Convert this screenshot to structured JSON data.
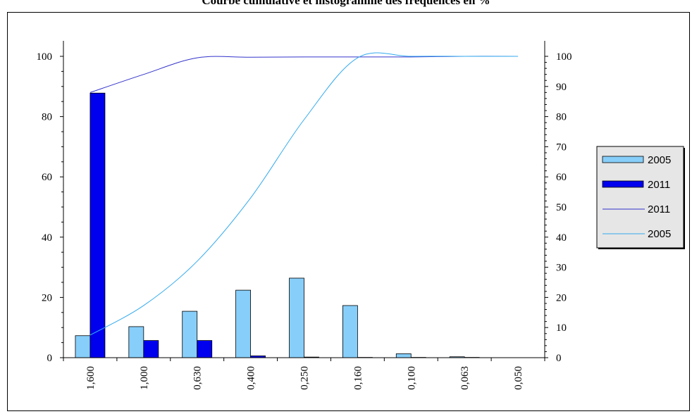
{
  "chart_data": {
    "type": "bar",
    "title": "Courbe cumulative et histogramme des fréquences en %",
    "categories": [
      "1,600",
      "1,000",
      "0,630",
      "0,400",
      "0,250",
      "0,160",
      "0,100",
      "0,063",
      "0,050"
    ],
    "series": [
      {
        "name": "2005",
        "kind": "bar",
        "axis": "left",
        "color": "#87CEFA",
        "values": [
          7.3,
          10.3,
          15.4,
          22.4,
          26.4,
          17.3,
          1.3,
          0.3,
          0
        ]
      },
      {
        "name": "2011",
        "kind": "bar",
        "axis": "left",
        "color": "#0000EE",
        "values": [
          87.8,
          5.7,
          5.7,
          0.6,
          0.2,
          0.1,
          0.1,
          0.1,
          0
        ]
      },
      {
        "name": "2011",
        "kind": "line",
        "axis": "right",
        "color": "#3333CC",
        "values": [
          88,
          94,
          99.5,
          99.7,
          99.8,
          99.8,
          99.8,
          100,
          100
        ]
      },
      {
        "name": "2005",
        "kind": "line",
        "axis": "right",
        "color": "#33AAEE",
        "values": [
          7.5,
          17.3,
          32,
          53,
          79,
          99.5,
          100,
          100,
          100
        ]
      }
    ],
    "y_left": {
      "ylim": [
        0,
        100
      ],
      "ticks": [
        "0",
        "20",
        "40",
        "60",
        "80",
        "100"
      ]
    },
    "y_right": {
      "ylim": [
        0,
        100
      ],
      "ticks": [
        "0",
        "10",
        "20",
        "30",
        "40",
        "50",
        "60",
        "70",
        "80",
        "90",
        "100"
      ]
    },
    "xlabel": "",
    "ylabel": "",
    "grid": false,
    "legend_position": "right",
    "legend_entries": [
      {
        "label": "2005",
        "symbol": "bar",
        "color": "#87CEFA"
      },
      {
        "label": "2011",
        "symbol": "bar",
        "color": "#0000EE"
      },
      {
        "label": "2011",
        "symbol": "line",
        "color": "#3333CC"
      },
      {
        "label": "2005",
        "symbol": "line",
        "color": "#33AAEE"
      }
    ]
  }
}
